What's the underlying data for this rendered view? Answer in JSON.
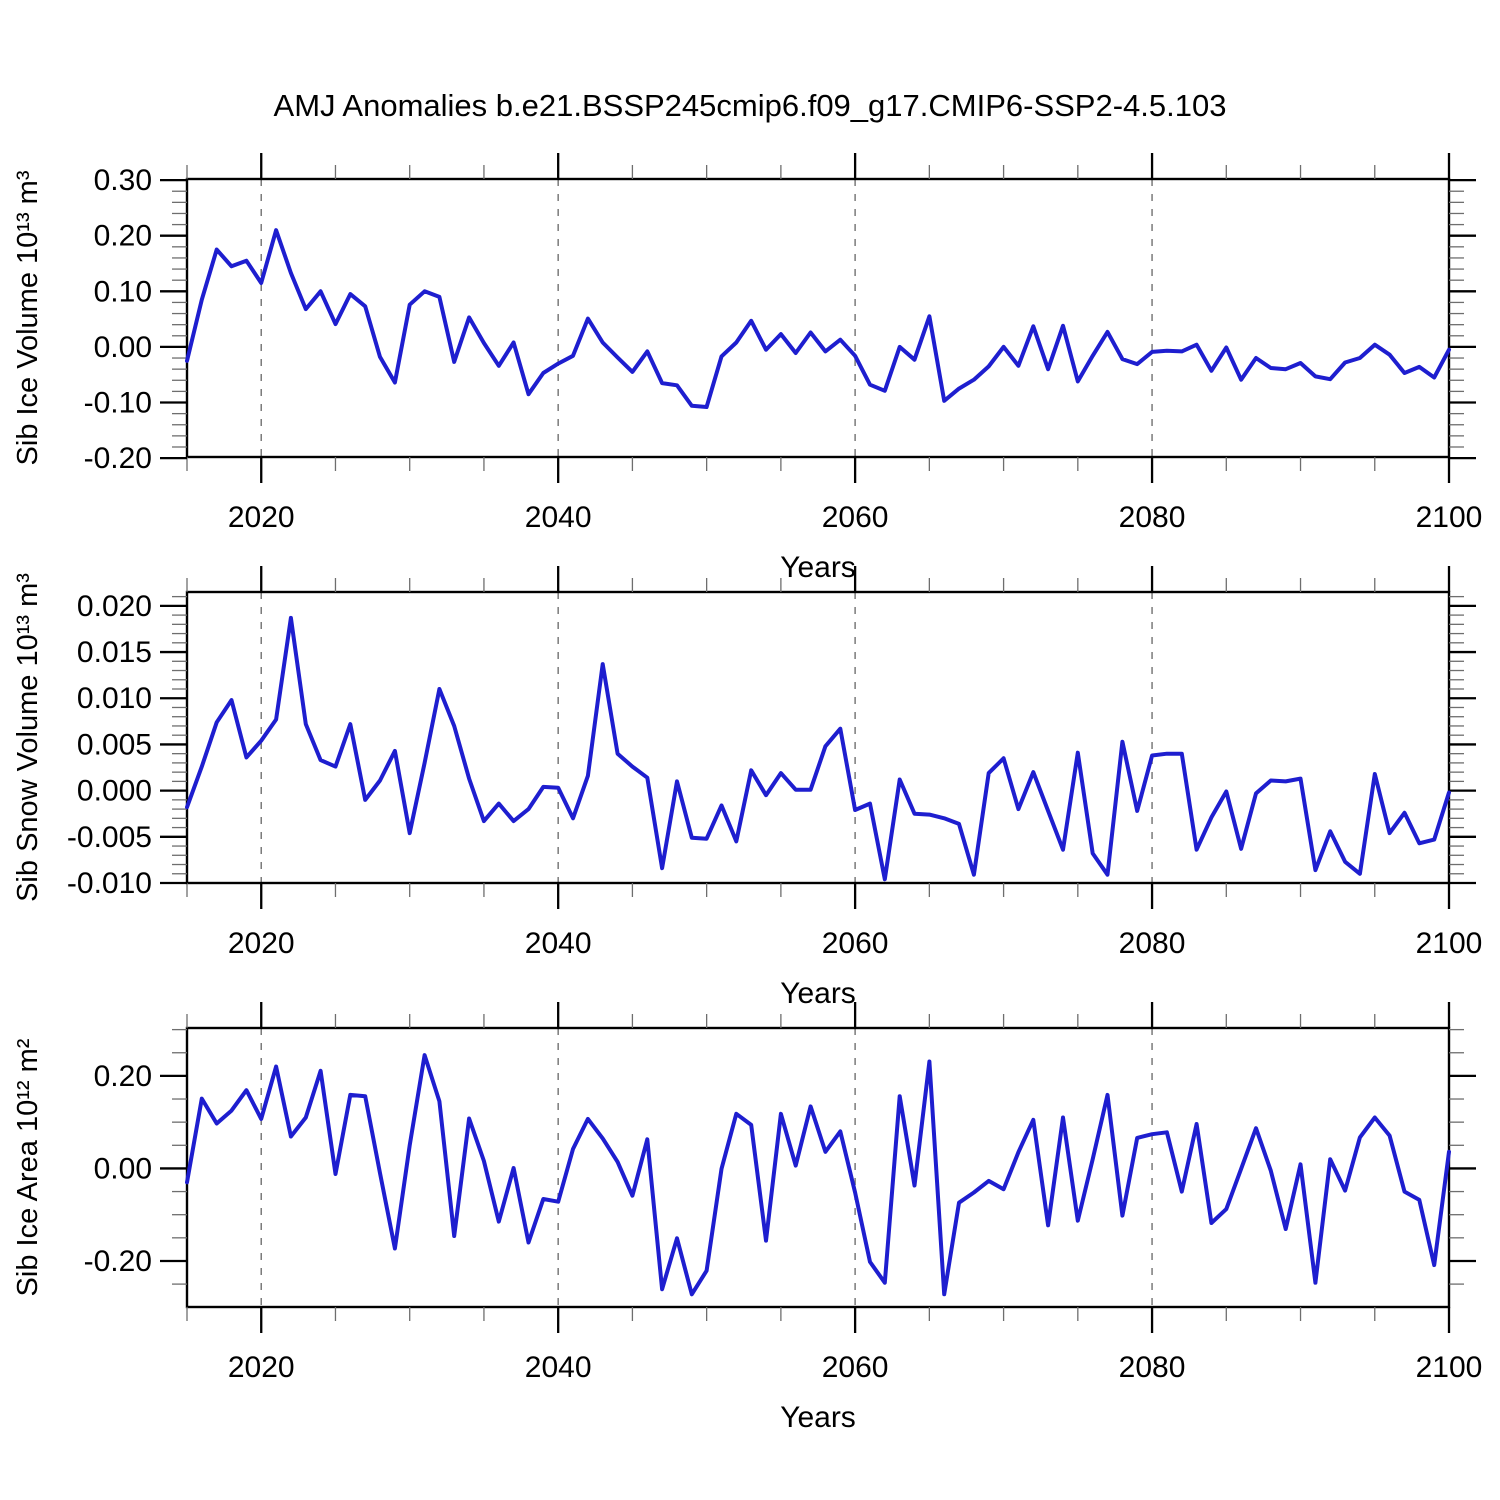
{
  "title": "AMJ Anomalies b.e21.BSSP245cmip6.f09_g17.CMIP6-SSP2-4.5.103",
  "style": {
    "line_color": "#1e1ecf",
    "grid_color": "#7a7a7a",
    "frame_color": "#000000",
    "minor_tick_color": "#6e6e6e",
    "text_color": "#000000"
  },
  "chart_data": [
    {
      "type": "line",
      "name": "sib-ice-volume",
      "ylabel": "Sib Ice Volume 10¹³ m³",
      "xlabel": "Years",
      "x_years": {
        "start": 2015,
        "end": 2100,
        "step": 1
      },
      "ylim": [
        -0.198,
        0.302
      ],
      "yticks": [
        {
          "v": 0.3,
          "label": "0.30"
        },
        {
          "v": 0.2,
          "label": "0.20"
        },
        {
          "v": 0.1,
          "label": "0.10"
        },
        {
          "v": 0.0,
          "label": "0.00"
        },
        {
          "v": -0.1,
          "label": "-0.10"
        },
        {
          "v": -0.2,
          "label": "-0.20"
        }
      ],
      "y_minor_step": 0.02,
      "xticks": [
        {
          "v": 2020,
          "label": "2020"
        },
        {
          "v": 2040,
          "label": "2040"
        },
        {
          "v": 2060,
          "label": "2060"
        },
        {
          "v": 2080,
          "label": "2080"
        },
        {
          "v": 2100,
          "label": "2100"
        }
      ],
      "x_minor_step": 5,
      "gridline_years": [
        2020,
        2040,
        2060,
        2080
      ],
      "values": [
        -0.025,
        0.085,
        0.175,
        0.145,
        0.155,
        0.115,
        0.21,
        0.133,
        0.068,
        0.1,
        0.041,
        0.095,
        0.073,
        -0.018,
        -0.064,
        0.076,
        0.1,
        0.09,
        -0.027,
        0.053,
        0.007,
        -0.034,
        0.008,
        -0.085,
        -0.047,
        -0.03,
        -0.016,
        0.051,
        0.008,
        -0.019,
        -0.045,
        -0.008,
        -0.065,
        -0.069,
        -0.106,
        -0.108,
        -0.017,
        0.008,
        0.047,
        -0.005,
        0.023,
        -0.011,
        0.026,
        -0.008,
        0.013,
        -0.016,
        -0.068,
        -0.079,
        0.0,
        -0.023,
        0.055,
        -0.097,
        -0.075,
        -0.059,
        -0.035,
        0.0,
        -0.034,
        0.037,
        -0.04,
        0.038,
        -0.062,
        -0.016,
        0.027,
        -0.022,
        -0.031,
        -0.009,
        -0.007,
        -0.008,
        0.004,
        -0.043,
        -0.001,
        -0.059,
        -0.02,
        -0.038,
        -0.04,
        -0.029,
        -0.053,
        -0.058,
        -0.028,
        -0.02,
        0.004,
        -0.014,
        -0.047,
        -0.036,
        -0.055,
        -0.005
      ]
    },
    {
      "type": "line",
      "name": "sib-snow-volume",
      "ylabel": "Sib Snow Volume 10¹³ m³",
      "xlabel": "Years",
      "x_years": {
        "start": 2015,
        "end": 2100,
        "step": 1
      },
      "ylim": [
        -0.01,
        0.0215
      ],
      "yticks": [
        {
          "v": 0.02,
          "label": "0.020"
        },
        {
          "v": 0.015,
          "label": "0.015"
        },
        {
          "v": 0.01,
          "label": "0.010"
        },
        {
          "v": 0.005,
          "label": "0.005"
        },
        {
          "v": 0.0,
          "label": "0.000"
        },
        {
          "v": -0.005,
          "label": "-0.005"
        },
        {
          "v": -0.01,
          "label": "-0.010"
        }
      ],
      "y_minor_step": 0.001,
      "xticks": [
        {
          "v": 2020,
          "label": "2020"
        },
        {
          "v": 2040,
          "label": "2040"
        },
        {
          "v": 2060,
          "label": "2060"
        },
        {
          "v": 2080,
          "label": "2080"
        },
        {
          "v": 2100,
          "label": "2100"
        }
      ],
      "x_minor_step": 5,
      "gridline_years": [
        2020,
        2040,
        2060,
        2080
      ],
      "values": [
        -0.0018,
        0.0026,
        0.0074,
        0.0098,
        0.0036,
        0.0054,
        0.0077,
        0.0187,
        0.0072,
        0.0033,
        0.0026,
        0.0072,
        -0.001,
        0.0011,
        0.0043,
        -0.0046,
        0.003,
        0.011,
        0.007,
        0.0013,
        -0.0033,
        -0.0014,
        -0.0033,
        -0.002,
        0.0004,
        0.0003,
        -0.003,
        0.0016,
        0.0137,
        0.004,
        0.0026,
        0.0014,
        -0.0084,
        0.001,
        -0.0051,
        -0.0052,
        -0.0016,
        -0.0055,
        0.0022,
        -0.0005,
        0.0019,
        0.0001,
        0.0001,
        0.0048,
        0.0067,
        -0.0021,
        -0.0014,
        -0.0096,
        0.0012,
        -0.0025,
        -0.0026,
        -0.003,
        -0.0036,
        -0.0091,
        0.0019,
        0.0035,
        -0.002,
        0.002,
        -0.0022,
        -0.0064,
        0.0041,
        -0.0068,
        -0.0091,
        0.0053,
        -0.0022,
        0.0038,
        0.004,
        0.004,
        -0.0064,
        -0.0029,
        -0.0001,
        -0.0063,
        -0.0003,
        0.0011,
        0.001,
        0.0013,
        -0.0086,
        -0.0044,
        -0.0077,
        -0.009,
        0.0018,
        -0.0046,
        -0.0024,
        -0.0057,
        -0.0053,
        -0.0002
      ]
    },
    {
      "type": "line",
      "name": "sib-ice-area",
      "ylabel": "Sib Ice Area 10¹² m²",
      "xlabel": "Years",
      "x_years": {
        "start": 2015,
        "end": 2100,
        "step": 1
      },
      "ylim": [
        -0.2995,
        0.3035
      ],
      "yticks": [
        {
          "v": 0.2,
          "label": "0.20"
        },
        {
          "v": 0.0,
          "label": "0.00"
        },
        {
          "v": -0.2,
          "label": "-0.20"
        }
      ],
      "y_minor_step": 0.05,
      "xticks": [
        {
          "v": 2020,
          "label": "2020"
        },
        {
          "v": 2040,
          "label": "2040"
        },
        {
          "v": 2060,
          "label": "2060"
        },
        {
          "v": 2080,
          "label": "2080"
        },
        {
          "v": 2100,
          "label": "2100"
        }
      ],
      "x_minor_step": 5,
      "gridline_years": [
        2020,
        2040,
        2060,
        2080
      ],
      "values": [
        -0.03,
        0.151,
        0.097,
        0.125,
        0.169,
        0.107,
        0.22,
        0.069,
        0.11,
        0.211,
        -0.012,
        0.159,
        0.156,
        -0.01,
        -0.173,
        0.05,
        0.245,
        0.145,
        -0.146,
        0.108,
        0.016,
        -0.115,
        0.001,
        -0.16,
        -0.066,
        -0.072,
        0.042,
        0.107,
        0.065,
        0.014,
        -0.059,
        0.063,
        -0.261,
        -0.151,
        -0.272,
        -0.221,
        -0.001,
        0.118,
        0.094,
        -0.156,
        0.118,
        0.006,
        0.134,
        0.036,
        0.08,
        -0.052,
        -0.202,
        -0.247,
        0.156,
        -0.037,
        0.231,
        -0.272,
        -0.074,
        -0.052,
        -0.027,
        -0.045,
        0.035,
        0.105,
        -0.123,
        0.11,
        -0.113,
        0.02,
        0.159,
        -0.102,
        0.066,
        0.074,
        0.078,
        -0.05,
        0.096,
        -0.118,
        -0.088,
        -0.001,
        0.087,
        -0.005,
        -0.131,
        0.009,
        -0.247,
        0.02,
        -0.048,
        0.067,
        0.11,
        0.071,
        -0.05,
        -0.068,
        -0.209,
        0.036
      ]
    }
  ]
}
